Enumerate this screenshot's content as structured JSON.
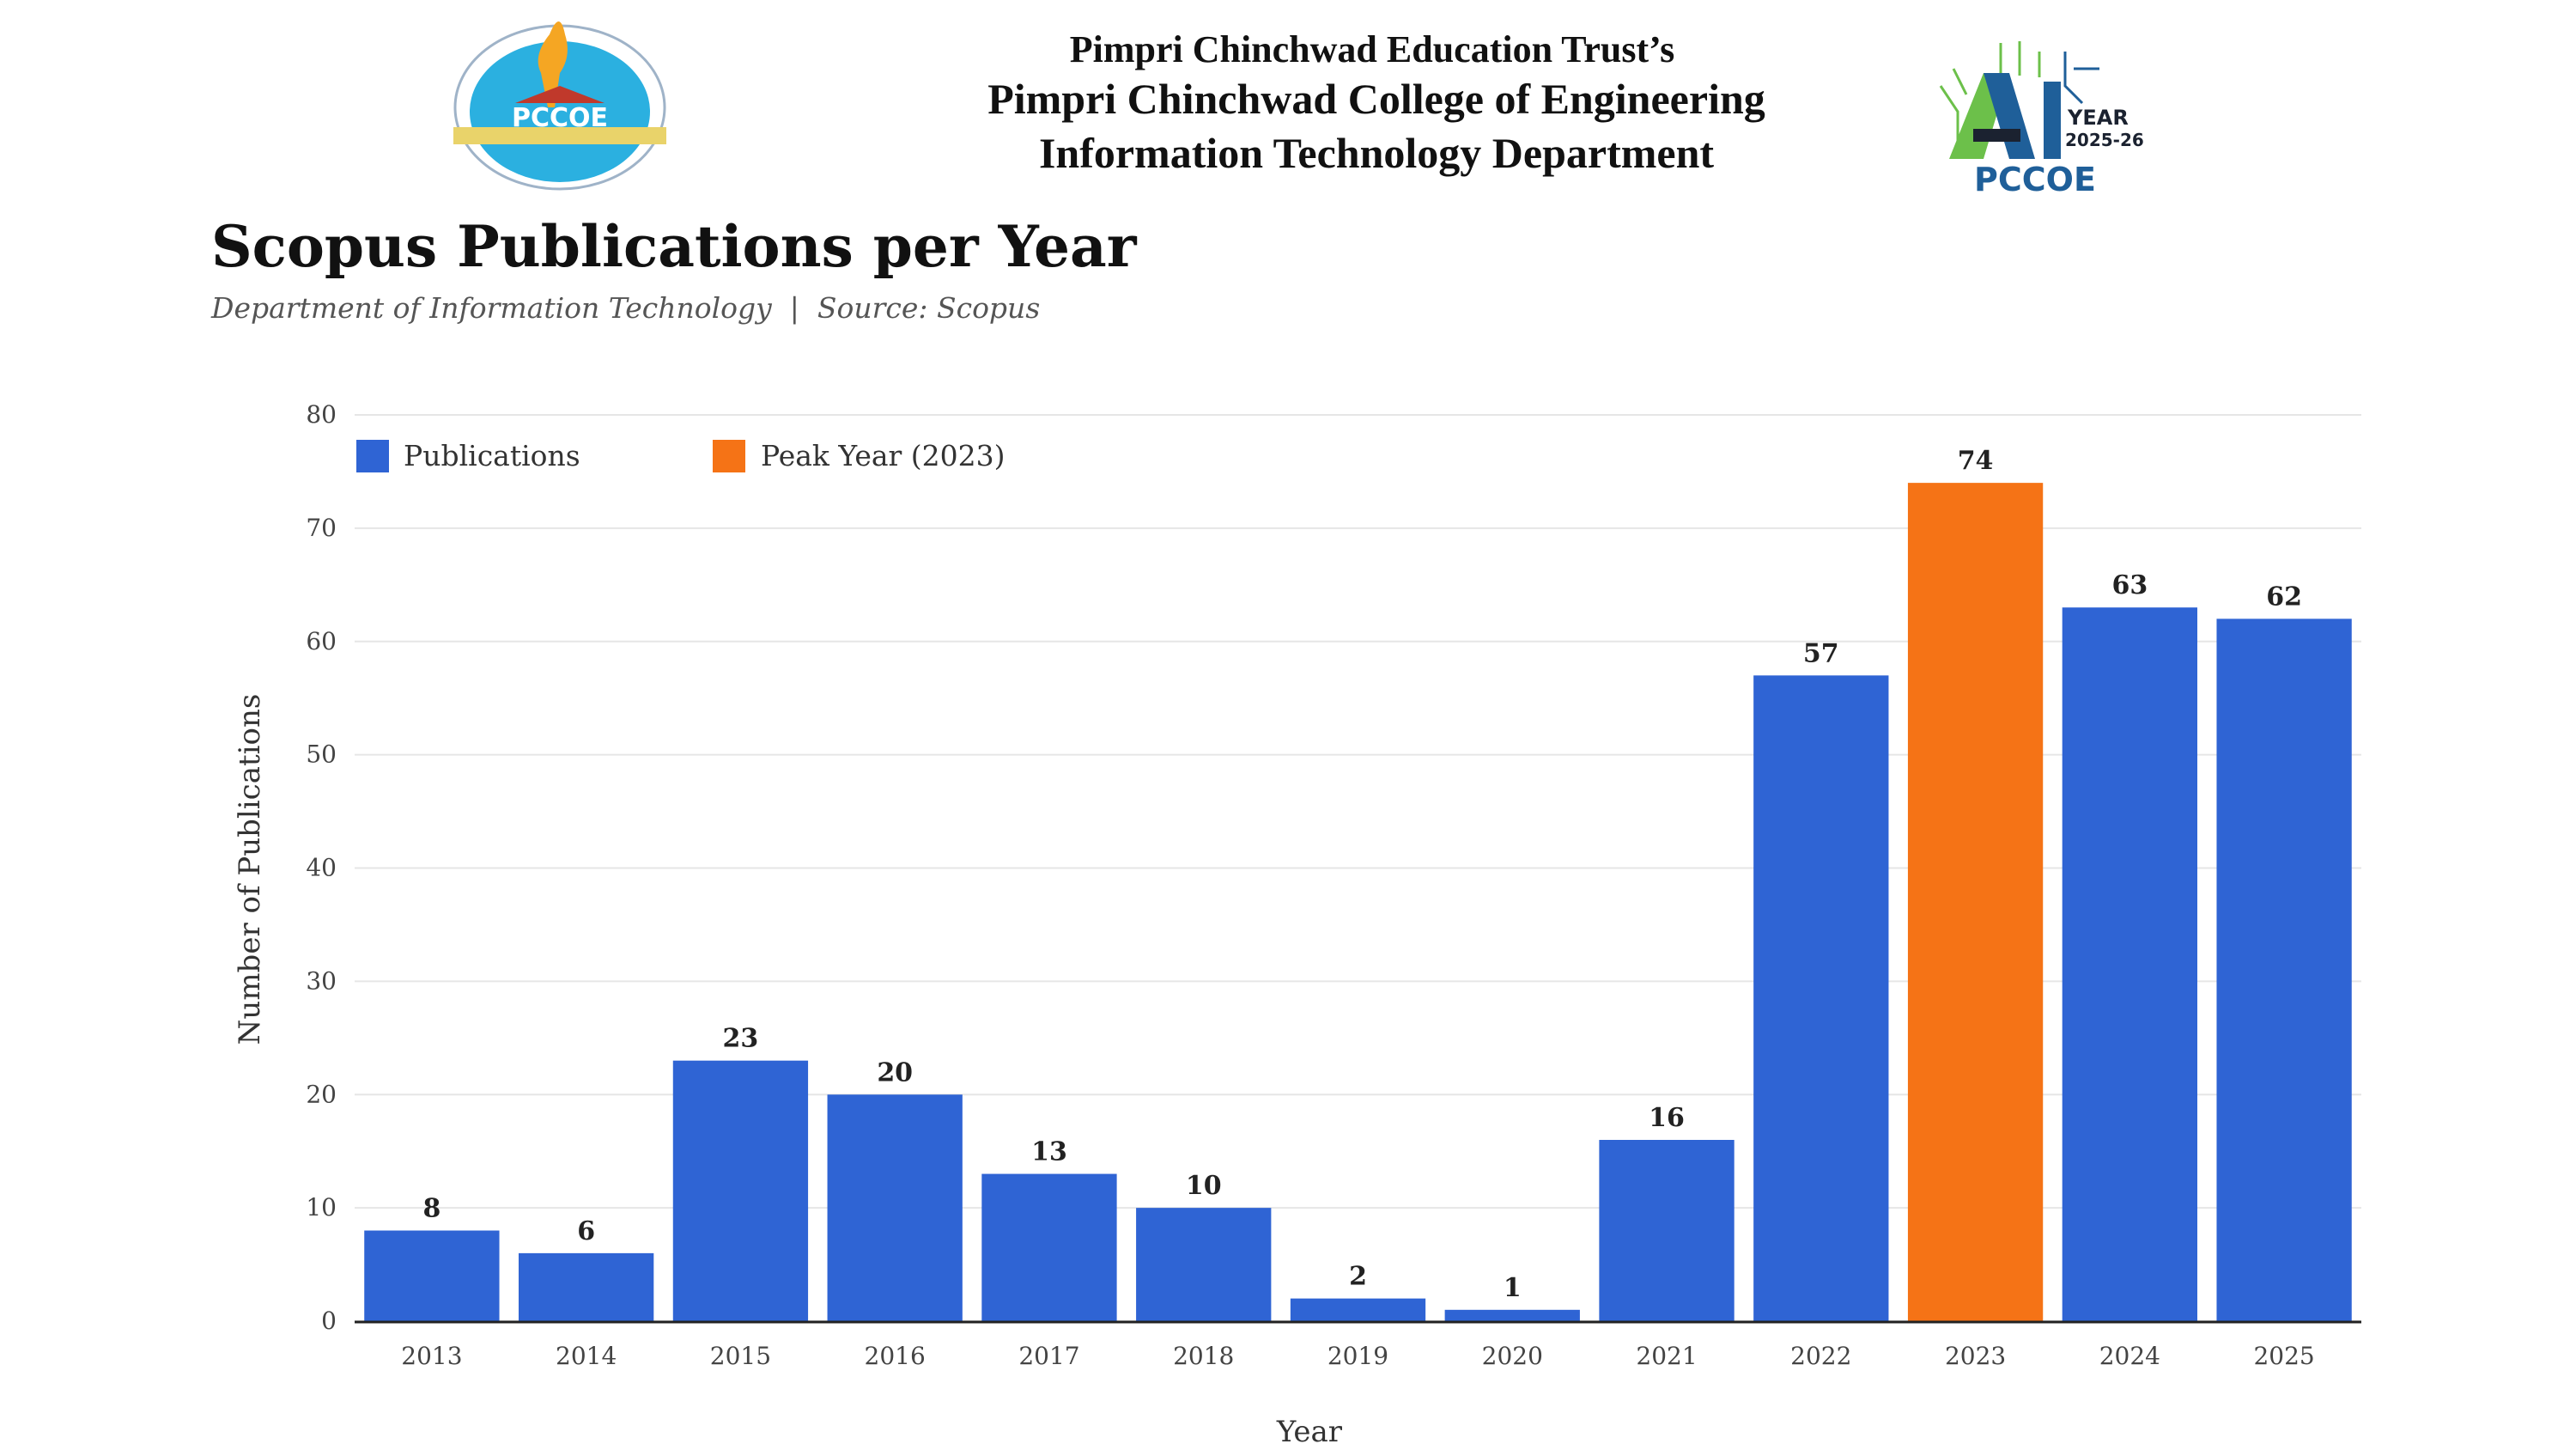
{
  "header": {
    "line1": "Pimpri Chinchwad Education Trust’s",
    "line2": "Pimpri Chinchwad College of Engineering",
    "line3": "Information Technology Department",
    "left_logo_text": "PCCOE",
    "right_logo": {
      "big": "AI",
      "year_label": "YEAR",
      "year": "2025-26",
      "name": "PCCOE"
    }
  },
  "colors": {
    "publications": "#2f64d4",
    "peak": "#f57316",
    "grid": "#e6e6e6",
    "axis": "#222222"
  },
  "chart_data": {
    "type": "bar",
    "title": "Scopus Publications per Year",
    "subtitle": "Department of Information Technology  |  Source: Scopus",
    "xlabel": "Year",
    "ylabel": "Number of Publications",
    "ylim": [
      0,
      80
    ],
    "yticks": [
      "0",
      "10",
      "20",
      "30",
      "40",
      "50",
      "60",
      "70",
      "80"
    ],
    "grid": true,
    "legend_placement": "top-left",
    "legend": [
      {
        "label": "Publications",
        "color_key": "publications"
      },
      {
        "label": "Peak Year (2023)",
        "color_key": "peak"
      }
    ],
    "categories": [
      "2013",
      "2014",
      "2015",
      "2016",
      "2017",
      "2018",
      "2019",
      "2020",
      "2021",
      "2022",
      "2023",
      "2024",
      "2025"
    ],
    "values": [
      8,
      6,
      23,
      20,
      13,
      10,
      2,
      1,
      16,
      57,
      74,
      63,
      62
    ],
    "peak_index": 10
  }
}
